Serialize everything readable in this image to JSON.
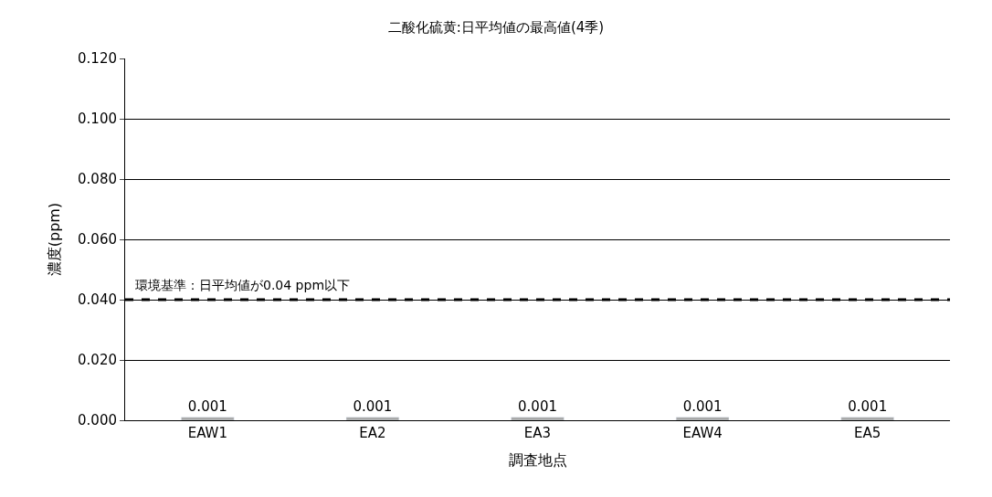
{
  "chart_data": {
    "type": "bar",
    "title": "二酸化硫黄:日平均値の最高値(4季)",
    "xlabel": "調査地点",
    "ylabel": "濃度(ppm)",
    "categories": [
      "EAW1",
      "EA2",
      "EA3",
      "EAW4",
      "EA5"
    ],
    "series": [
      {
        "color": "#a6a6a6",
        "values": [
          0.001,
          0.001,
          0.001,
          0.001,
          0.001
        ]
      }
    ],
    "data_labels": true,
    "ylim": [
      0,
      0.12
    ],
    "yticks": [
      {
        "value": 0,
        "label": "0.000"
      },
      {
        "value": 0.02,
        "label": "0.020"
      },
      {
        "value": 0.04,
        "label": "0.040"
      },
      {
        "value": 0.06,
        "label": "0.060"
      },
      {
        "value": 0.08,
        "label": "0.080"
      },
      {
        "value": 0.1,
        "label": "0.100"
      },
      {
        "value": 0.12,
        "label": "0.120"
      }
    ],
    "grid": "y",
    "ref_lines": [
      {
        "axis": "y",
        "value": 0.04,
        "label": "環境基準：日平均値が0.04 ppm以下",
        "color": "#000000",
        "line_style": "dashed"
      }
    ]
  }
}
